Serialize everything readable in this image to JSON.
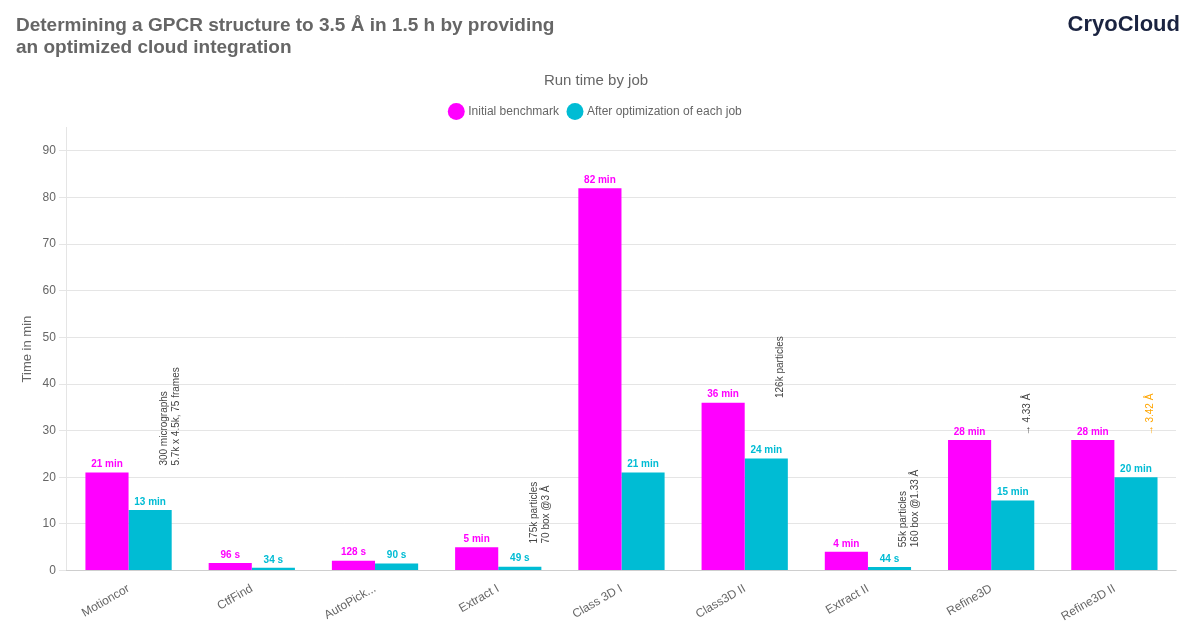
{
  "chart_data": {
    "type": "bar",
    "title": [
      "Determining a GPCR structure to 3.5 Å in 1.5 h by providing",
      "an optimized cloud integration"
    ],
    "subtitle": "Run time by job",
    "ylabel": "Time in min",
    "categories": [
      "Motioncor",
      "CtfFind",
      "AutoPick...",
      "Extract I",
      "Class 3D I",
      "Class3D II",
      "Extract II",
      "Refine3D",
      "Refine3D II"
    ],
    "series": [
      {
        "name": "Initial benchmark",
        "color": "#ff00ff",
        "values": [
          21,
          1.6,
          2.1,
          5,
          82,
          36,
          4,
          28,
          28
        ],
        "value_labels": [
          "21 min",
          "96 s",
          "128 s",
          "5 min",
          "82 min",
          "36 min",
          "4 min",
          "28 min",
          "28 min"
        ]
      },
      {
        "name": "After optimization of each job",
        "color": "#00bcd4",
        "values": [
          13,
          0.57,
          1.5,
          0.82,
          21,
          24,
          0.73,
          15,
          20
        ],
        "value_labels": [
          "13 min",
          "34 s",
          "90 s",
          "49 s",
          "21 min",
          "24 min",
          "44 s",
          "15 min",
          "20 min"
        ]
      }
    ],
    "ylim": [
      0,
      95
    ],
    "yticks": [
      0,
      10,
      20,
      30,
      40,
      50,
      60,
      70,
      80,
      90
    ],
    "grid": true,
    "legend": "top",
    "data_labels": true,
    "annotations": [
      {
        "text": "CryoCloud"
      },
      {
        "text": "300 micrographs\n5.7k x 4.5k, 75 frames",
        "category": "Motioncor",
        "y": 22.5
      },
      {
        "text": "175k particles\n70 box @3 Å",
        "category": "Extract I",
        "y": 5.8
      },
      {
        "text": "126k particles",
        "category": "Class3D II",
        "y": 37.0
      },
      {
        "text": "55k particles\n160 box @1.33 Å",
        "category": "Extract II",
        "y": 5.0
      },
      {
        "text": "→ 4.33 Å",
        "category": "Refine3D",
        "y": 29.0
      },
      {
        "text": "→ 3.42 Å",
        "category": "Refine3D II",
        "y": 29.0,
        "color": "#ffa500"
      }
    ]
  }
}
